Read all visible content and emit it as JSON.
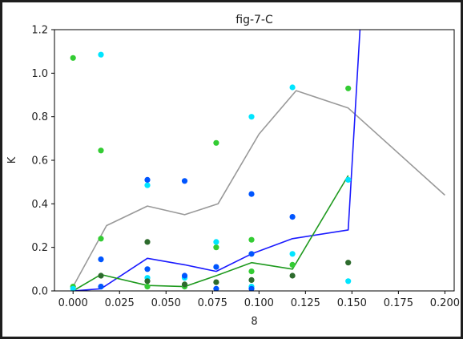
{
  "chart_data": {
    "type": "scatter",
    "title": "fig-7-C",
    "xlabel": "8",
    "ylabel": "K",
    "xlim": [
      -0.01,
      0.205
    ],
    "ylim": [
      0,
      1.2
    ],
    "xticks": [
      0.0,
      0.025,
      0.05,
      0.075,
      0.1,
      0.125,
      0.15,
      0.175,
      0.2
    ],
    "xtick_labels": [
      "0.000",
      "0.025",
      "0.050",
      "0.075",
      "0.100",
      "0.125",
      "0.150",
      "0.175",
      "0.200"
    ],
    "yticks": [
      0.0,
      0.2,
      0.4,
      0.6,
      0.8,
      1.0,
      1.2
    ],
    "ytick_labels": [
      "0.0",
      "0.2",
      "0.4",
      "0.6",
      "0.8",
      "1.0",
      "1.2"
    ],
    "grid": false,
    "legend": false,
    "lines": [
      {
        "color": "#999999",
        "points": [
          [
            0.0,
            0.02
          ],
          [
            0.018,
            0.3
          ],
          [
            0.04,
            0.39
          ],
          [
            0.06,
            0.35
          ],
          [
            0.078,
            0.4
          ],
          [
            0.1,
            0.72
          ],
          [
            0.12,
            0.92
          ],
          [
            0.148,
            0.84
          ],
          [
            0.2,
            0.44
          ]
        ]
      },
      {
        "color": "#1a1aff",
        "points": [
          [
            0.0,
            0.0
          ],
          [
            0.015,
            0.01
          ],
          [
            0.04,
            0.15
          ],
          [
            0.06,
            0.12
          ],
          [
            0.077,
            0.09
          ],
          [
            0.096,
            0.17
          ],
          [
            0.118,
            0.24
          ],
          [
            0.148,
            0.28
          ],
          [
            0.155,
            1.3
          ]
        ]
      },
      {
        "color": "#1f9a1f",
        "points": [
          [
            0.0,
            0.0
          ],
          [
            0.015,
            0.075
          ],
          [
            0.04,
            0.025
          ],
          [
            0.06,
            0.02
          ],
          [
            0.077,
            0.07
          ],
          [
            0.096,
            0.13
          ],
          [
            0.118,
            0.1
          ],
          [
            0.148,
            0.53
          ]
        ]
      }
    ],
    "scatter": [
      {
        "color": "#33cc33",
        "points": [
          [
            0.0,
            1.07
          ],
          [
            0.015,
            0.645
          ],
          [
            0.015,
            0.24
          ],
          [
            0.077,
            0.68
          ],
          [
            0.077,
            0.2
          ],
          [
            0.096,
            0.235
          ],
          [
            0.096,
            0.09
          ],
          [
            0.118,
            0.12
          ],
          [
            0.148,
            0.93
          ],
          [
            0.0,
            0.02
          ],
          [
            0.04,
            0.02
          ],
          [
            0.06,
            0.02
          ]
        ]
      },
      {
        "color": "#00e5ff",
        "points": [
          [
            0.015,
            1.085
          ],
          [
            0.04,
            0.485
          ],
          [
            0.077,
            0.225
          ],
          [
            0.096,
            0.8
          ],
          [
            0.118,
            0.935
          ],
          [
            0.118,
            0.17
          ],
          [
            0.148,
            0.51
          ],
          [
            0.148,
            0.045
          ],
          [
            0.0,
            0.01
          ],
          [
            0.04,
            0.06
          ],
          [
            0.06,
            0.06
          ],
          [
            0.096,
            0.02
          ]
        ]
      },
      {
        "color": "#0055ff",
        "points": [
          [
            0.015,
            0.145
          ],
          [
            0.04,
            0.51
          ],
          [
            0.06,
            0.505
          ],
          [
            0.096,
            0.445
          ],
          [
            0.118,
            0.34
          ],
          [
            0.04,
            0.1
          ],
          [
            0.06,
            0.07
          ],
          [
            0.077,
            0.11
          ],
          [
            0.096,
            0.17
          ],
          [
            0.015,
            0.02
          ],
          [
            0.077,
            0.01
          ],
          [
            0.096,
            0.01
          ]
        ]
      },
      {
        "color": "#2d6b2d",
        "points": [
          [
            0.04,
            0.225
          ],
          [
            0.04,
            0.045
          ],
          [
            0.06,
            0.03
          ],
          [
            0.077,
            0.04
          ],
          [
            0.096,
            0.05
          ],
          [
            0.118,
            0.07
          ],
          [
            0.148,
            0.13
          ],
          [
            0.015,
            0.07
          ]
        ]
      }
    ]
  }
}
